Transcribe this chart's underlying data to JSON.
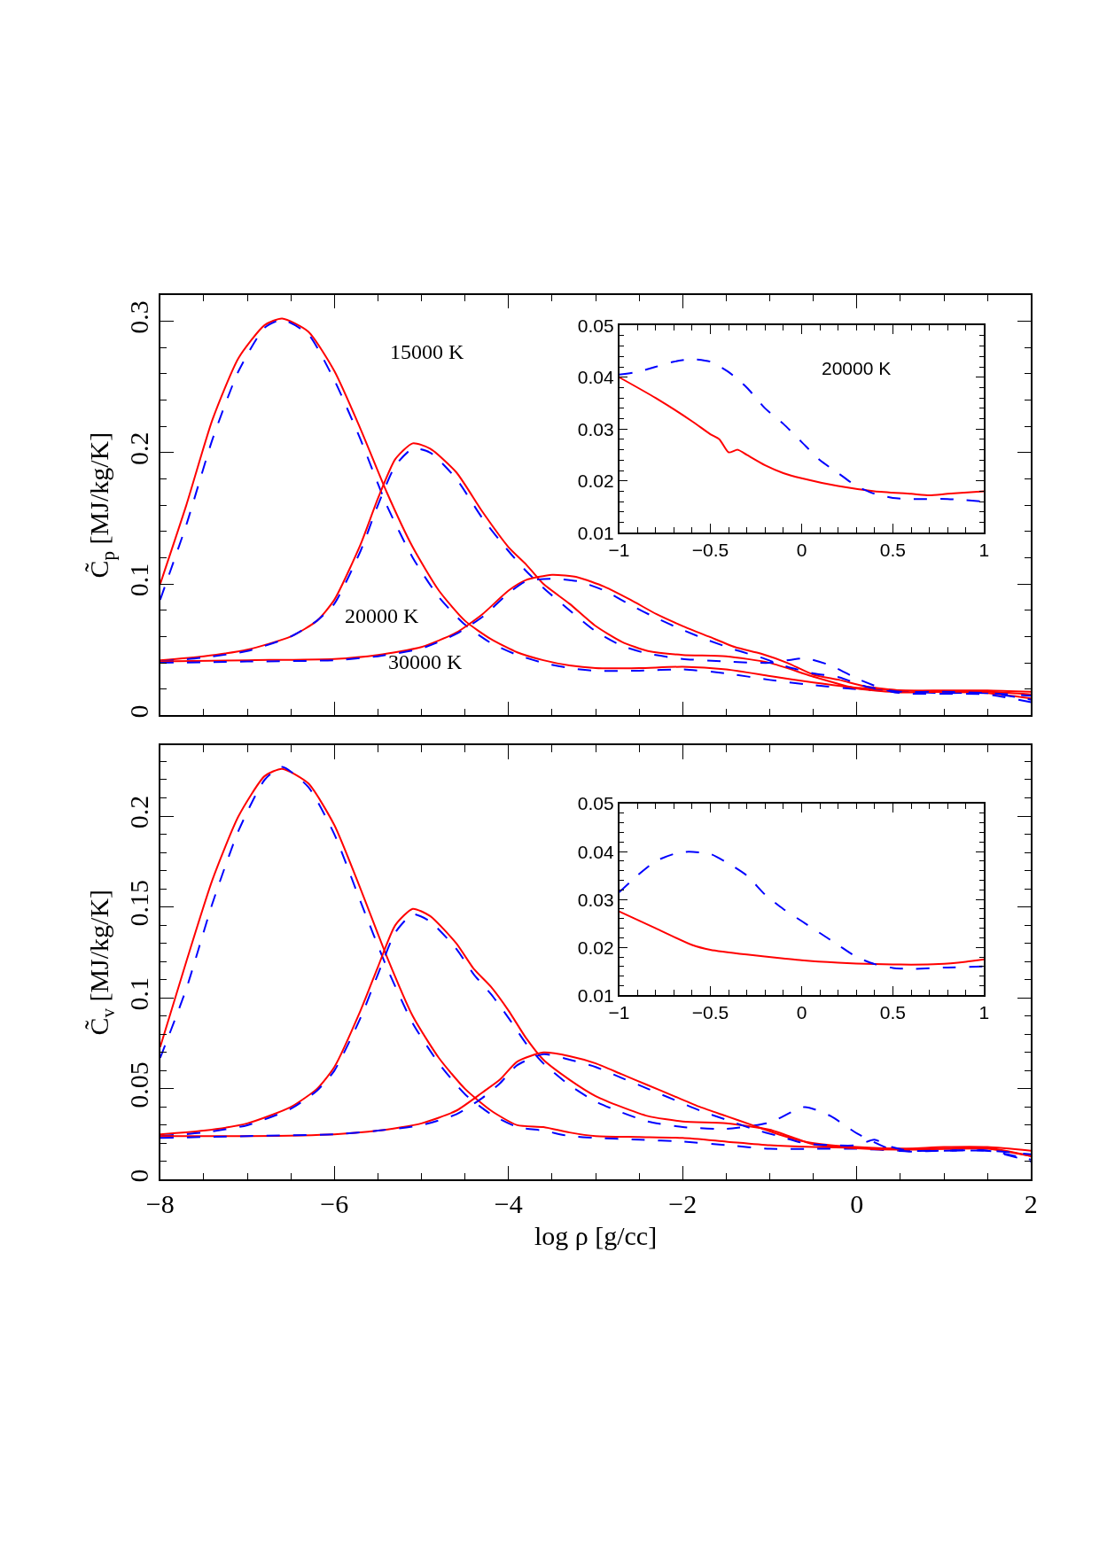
{
  "chart_data": [
    {
      "type": "line",
      "ylabel": "C̃$_{p}$ [MJ/kg/K]",
      "tick_labels": "y",
      "xlim": [
        -8,
        2
      ],
      "xticks": [
        -8,
        {
          "value": -7.5,
          "label": null
        },
        {
          "value": -7,
          "label": null
        },
        {
          "value": -6.5,
          "label": null
        },
        -6,
        {
          "value": -5.5,
          "label": null
        },
        {
          "value": -5,
          "label": null
        },
        {
          "value": -4.5,
          "label": null
        },
        -4,
        {
          "value": -3.5,
          "label": null
        },
        {
          "value": -3,
          "label": null
        },
        {
          "value": -2.5,
          "label": null
        },
        -2,
        {
          "value": -1.5,
          "label": null
        },
        {
          "value": -1,
          "label": null
        },
        {
          "value": -0.5,
          "label": null
        },
        0,
        {
          "value": 0.5,
          "label": null
        },
        {
          "value": 1,
          "label": null
        },
        {
          "value": 1.5,
          "label": null
        },
        2
      ],
      "ylim": [
        0,
        0.32
      ],
      "yticks": [
        0,
        {
          "value": 0.02,
          "label": null
        },
        {
          "value": 0.04,
          "label": null
        },
        {
          "value": 0.06,
          "label": null
        },
        {
          "value": 0.08,
          "label": null
        },
        0.1,
        {
          "value": 0.12,
          "label": null
        },
        {
          "value": 0.14,
          "label": null
        },
        {
          "value": 0.16,
          "label": null
        },
        {
          "value": 0.18,
          "label": null
        },
        0.2,
        {
          "value": 0.22,
          "label": null
        },
        {
          "value": 0.24,
          "label": null
        },
        {
          "value": 0.26,
          "label": null
        },
        {
          "value": 0.28,
          "label": null
        },
        0.3
      ],
      "annotations": [
        "15000 K",
        "20000 K",
        "30000 K"
      ],
      "series": [
        {
          "color": "#ff0000",
          "line_style": "solid",
          "x": [
            -8,
            -7.7,
            -7.4,
            -7.1,
            -6.8,
            -6.6,
            -6.3,
            -6.0,
            -5.7,
            -5.4,
            -5.1,
            -4.8,
            -4.5,
            -4.2,
            -3.9,
            -3.6,
            -3.3,
            -3.0,
            -2.5,
            -2.0,
            -1.5,
            -1.0,
            -0.5,
            0,
            0.5,
            1.0,
            1.5,
            2.0
          ],
          "values": [
            0.1,
            0.16,
            0.225,
            0.272,
            0.297,
            0.302,
            0.292,
            0.262,
            0.218,
            0.17,
            0.128,
            0.095,
            0.072,
            0.058,
            0.048,
            0.042,
            0.038,
            0.036,
            0.036,
            0.037,
            0.035,
            0.03,
            0.025,
            0.021,
            0.019,
            0.018,
            0.017,
            0.013
          ]
        },
        {
          "color": "#0000ff",
          "line_style": "dashed",
          "x": [
            -8,
            -7.7,
            -7.4,
            -7.1,
            -6.8,
            -6.6,
            -6.3,
            -6.0,
            -5.7,
            -5.4,
            -5.1,
            -4.8,
            -4.5,
            -4.2,
            -3.9,
            -3.6,
            -3.3,
            -3.0,
            -2.5,
            -2.0,
            -1.5,
            -1.0,
            -0.5,
            0,
            0.5,
            1.0,
            1.5,
            2.0
          ],
          "values": [
            0.088,
            0.145,
            0.21,
            0.262,
            0.295,
            0.301,
            0.29,
            0.255,
            0.21,
            0.16,
            0.12,
            0.09,
            0.069,
            0.055,
            0.046,
            0.04,
            0.036,
            0.034,
            0.034,
            0.035,
            0.032,
            0.027,
            0.023,
            0.02,
            0.018,
            0.017,
            0.017,
            0.012
          ]
        },
        {
          "color": "#ff0000",
          "line_style": "solid",
          "x": [
            -8,
            -7.5,
            -7,
            -6.5,
            -6.2,
            -6,
            -5.7,
            -5.5,
            -5.3,
            -5.1,
            -4.9,
            -4.6,
            -4.3,
            -4.0,
            -3.8,
            -3.6,
            -3.3,
            -3.0,
            -2.7,
            -2.4,
            -2.0,
            -1.5,
            -1.0,
            -0.5,
            0,
            0.5,
            1,
            1.5,
            2
          ],
          "values": [
            0.042,
            0.045,
            0.05,
            0.06,
            0.072,
            0.088,
            0.13,
            0.165,
            0.195,
            0.207,
            0.203,
            0.185,
            0.155,
            0.128,
            0.115,
            0.1,
            0.085,
            0.068,
            0.056,
            0.049,
            0.046,
            0.045,
            0.04,
            0.0295,
            0.0205,
            0.0175,
            0.018,
            0.018,
            0.016
          ]
        },
        {
          "color": "#0000ff",
          "line_style": "dashed",
          "x": [
            -8,
            -7.5,
            -7,
            -6.5,
            -6.2,
            -6,
            -5.7,
            -5.5,
            -5.3,
            -5.1,
            -4.9,
            -4.6,
            -4.3,
            -4.0,
            -3.8,
            -3.6,
            -3.3,
            -3.0,
            -2.7,
            -2.4,
            -2.0,
            -1.5,
            -1.0,
            -0.6,
            -0.3,
            0,
            0.4,
            0.6,
            1,
            1.5,
            2
          ],
          "values": [
            0.041,
            0.044,
            0.049,
            0.06,
            0.072,
            0.085,
            0.125,
            0.16,
            0.19,
            0.203,
            0.2,
            0.18,
            0.15,
            0.125,
            0.11,
            0.097,
            0.08,
            0.064,
            0.053,
            0.047,
            0.043,
            0.041,
            0.04,
            0.0435,
            0.038,
            0.028,
            0.018,
            0.0165,
            0.0165,
            0.016,
            0.01
          ]
        },
        {
          "color": "#ff0000",
          "line_style": "solid",
          "x": [
            -8,
            -7,
            -6,
            -5.5,
            -5,
            -4.6,
            -4.3,
            -4.0,
            -3.8,
            -3.5,
            -3.2,
            -2.9,
            -2.6,
            -2.3,
            -2.0,
            -1.7,
            -1.4,
            -1.1,
            -0.8,
            -0.5,
            -0.2,
            0.1,
            0.5,
            1,
            1.5,
            2
          ],
          "values": [
            0.041,
            0.042,
            0.043,
            0.046,
            0.052,
            0.063,
            0.077,
            0.095,
            0.103,
            0.107,
            0.105,
            0.098,
            0.088,
            0.077,
            0.068,
            0.06,
            0.052,
            0.047,
            0.04,
            0.031,
            0.027,
            0.022,
            0.019,
            0.019,
            0.019,
            0.018
          ]
        },
        {
          "color": "#0000ff",
          "line_style": "dashed",
          "x": [
            -8,
            -7,
            -6,
            -5.5,
            -5,
            -4.6,
            -4.3,
            -4.0,
            -3.8,
            -3.5,
            -3.2,
            -2.9,
            -2.6,
            -2.3,
            -2.0,
            -1.7,
            -1.4,
            -1.1,
            -0.8,
            -0.5,
            -0.2,
            0.1,
            0.5,
            1,
            1.5,
            2
          ],
          "values": [
            0.04,
            0.041,
            0.042,
            0.045,
            0.051,
            0.062,
            0.075,
            0.093,
            0.102,
            0.104,
            0.102,
            0.095,
            0.084,
            0.074,
            0.065,
            0.057,
            0.05,
            0.044,
            0.037,
            0.032,
            0.029,
            0.022,
            0.018,
            0.018,
            0.017,
            0.015
          ]
        }
      ]
    },
    {
      "type": "line",
      "xlim": [
        -1,
        1
      ],
      "xticks": [
        -1,
        {
          "value": -0.9,
          "label": null
        },
        {
          "value": -0.8,
          "label": null
        },
        {
          "value": -0.7,
          "label": null
        },
        {
          "value": -0.6,
          "label": null
        },
        -0.5,
        {
          "value": -0.4,
          "label": null
        },
        {
          "value": -0.3,
          "label": null
        },
        {
          "value": -0.2,
          "label": null
        },
        {
          "value": -0.1,
          "label": null
        },
        0,
        {
          "value": 0.1,
          "label": null
        },
        {
          "value": 0.2,
          "label": null
        },
        {
          "value": 0.3,
          "label": null
        },
        {
          "value": 0.4,
          "label": null
        },
        0.5,
        {
          "value": 0.6,
          "label": null
        },
        {
          "value": 0.7,
          "label": null
        },
        {
          "value": 0.8,
          "label": null
        },
        {
          "value": 0.9,
          "label": null
        },
        1
      ],
      "ylim": [
        0.01,
        0.05
      ],
      "yticks": [
        0.01,
        {
          "value": 0.012,
          "label": null
        },
        {
          "value": 0.014,
          "label": null
        },
        {
          "value": 0.016,
          "label": null
        },
        {
          "value": 0.018,
          "label": null
        },
        0.02,
        {
          "value": 0.022,
          "label": null
        },
        {
          "value": 0.024,
          "label": null
        },
        {
          "value": 0.026,
          "label": null
        },
        {
          "value": 0.028,
          "label": null
        },
        0.03,
        {
          "value": 0.032,
          "label": null
        },
        {
          "value": 0.034,
          "label": null
        },
        {
          "value": 0.036,
          "label": null
        },
        {
          "value": 0.038,
          "label": null
        },
        0.04,
        {
          "value": 0.042,
          "label": null
        },
        {
          "value": 0.044,
          "label": null
        },
        {
          "value": 0.046,
          "label": null
        },
        {
          "value": 0.048,
          "label": null
        },
        0.05
      ],
      "annotations": [
        "20000 K"
      ],
      "series": [
        {
          "color": "#ff0000",
          "line_style": "solid",
          "x": [
            -1,
            -0.8,
            -0.6,
            -0.5,
            -0.45,
            -0.4,
            -0.35,
            -0.3,
            -0.2,
            -0.1,
            0,
            0.2,
            0.4,
            0.6,
            0.7,
            0.8,
            1
          ],
          "values": [
            0.04,
            0.036,
            0.0315,
            0.029,
            0.028,
            0.0255,
            0.026,
            0.025,
            0.023,
            0.0215,
            0.0205,
            0.019,
            0.018,
            0.0175,
            0.0172,
            0.0175,
            0.018
          ]
        },
        {
          "color": "#0000ff",
          "line_style": "dashed",
          "x": [
            -1,
            -0.9,
            -0.8,
            -0.7,
            -0.6,
            -0.5,
            -0.4,
            -0.3,
            -0.2,
            -0.1,
            0,
            0.1,
            0.2,
            0.3,
            0.4,
            0.5,
            0.6,
            0.8,
            1
          ],
          "values": [
            0.0405,
            0.041,
            0.042,
            0.043,
            0.0435,
            0.043,
            0.041,
            0.038,
            0.034,
            0.031,
            0.0275,
            0.024,
            0.0215,
            0.019,
            0.0175,
            0.0167,
            0.0165,
            0.0165,
            0.016
          ]
        }
      ]
    },
    {
      "type": "line",
      "ylabel": "C̃$_{v}$ [MJ/kg/K]",
      "xlabel": "log ρ [g/cc]",
      "xlim": [
        -8,
        2
      ],
      "xticks": [
        -8,
        {
          "value": -7.5,
          "label": null
        },
        {
          "value": -7,
          "label": null
        },
        {
          "value": -6.5,
          "label": null
        },
        -6,
        {
          "value": -5.5,
          "label": null
        },
        {
          "value": -5,
          "label": null
        },
        {
          "value": -4.5,
          "label": null
        },
        -4,
        {
          "value": -3.5,
          "label": null
        },
        {
          "value": -3,
          "label": null
        },
        {
          "value": -2.5,
          "label": null
        },
        -2,
        {
          "value": -1.5,
          "label": null
        },
        {
          "value": -1,
          "label": null
        },
        {
          "value": -0.5,
          "label": null
        },
        0,
        {
          "value": 0.5,
          "label": null
        },
        {
          "value": 1,
          "label": null
        },
        {
          "value": 1.5,
          "label": null
        },
        2
      ],
      "ylim": [
        0,
        0.239
      ],
      "yticks": [
        0,
        {
          "value": 0.01,
          "label": null
        },
        {
          "value": 0.02,
          "label": null
        },
        {
          "value": 0.03,
          "label": null
        },
        {
          "value": 0.04,
          "label": null
        },
        0.05,
        {
          "value": 0.06,
          "label": null
        },
        {
          "value": 0.07,
          "label": null
        },
        {
          "value": 0.08,
          "label": null
        },
        {
          "value": 0.09,
          "label": null
        },
        0.1,
        {
          "value": 0.11,
          "label": null
        },
        {
          "value": 0.12,
          "label": null
        },
        {
          "value": 0.13,
          "label": null
        },
        {
          "value": 0.14,
          "label": null
        },
        0.15,
        {
          "value": 0.16,
          "label": null
        },
        {
          "value": 0.17,
          "label": null
        },
        {
          "value": 0.18,
          "label": null
        },
        {
          "value": 0.19,
          "label": null
        },
        0.2,
        {
          "value": 0.21,
          "label": null
        },
        {
          "value": 0.22,
          "label": null
        },
        {
          "value": 0.23,
          "label": null
        }
      ],
      "series": [
        {
          "color": "#ff0000",
          "line_style": "solid",
          "x": [
            -8,
            -7.7,
            -7.4,
            -7.1,
            -6.8,
            -6.6,
            -6.3,
            -6.0,
            -5.7,
            -5.4,
            -5.1,
            -4.8,
            -4.5,
            -4.2,
            -3.9,
            -3.6,
            -3.3,
            -3.0,
            -2.5,
            -2.0,
            -1.5,
            -1.0,
            -0.5,
            0,
            0.5,
            1,
            1.5,
            2
          ],
          "values": [
            0.073,
            0.12,
            0.165,
            0.2,
            0.222,
            0.226,
            0.218,
            0.195,
            0.16,
            0.123,
            0.09,
            0.067,
            0.05,
            0.038,
            0.03,
            0.029,
            0.026,
            0.024,
            0.0235,
            0.023,
            0.021,
            0.019,
            0.018,
            0.0175,
            0.017,
            0.017,
            0.017,
            0.013
          ]
        },
        {
          "color": "#0000ff",
          "line_style": "dashed",
          "x": [
            -8,
            -7.7,
            -7.4,
            -7.1,
            -6.8,
            -6.6,
            -6.3,
            -6.0,
            -5.7,
            -5.4,
            -5.1,
            -4.8,
            -4.5,
            -4.2,
            -3.9,
            -3.6,
            -3.3,
            -3.0,
            -2.5,
            -2.0,
            -1.5,
            -1.0,
            -0.5,
            0,
            0.5,
            1,
            1.5,
            2
          ],
          "values": [
            0.067,
            0.105,
            0.152,
            0.192,
            0.22,
            0.227,
            0.216,
            0.19,
            0.153,
            0.117,
            0.086,
            0.064,
            0.047,
            0.036,
            0.029,
            0.027,
            0.024,
            0.023,
            0.022,
            0.021,
            0.019,
            0.017,
            0.017,
            0.017,
            0.016,
            0.016,
            0.016,
            0.011
          ]
        },
        {
          "color": "#ff0000",
          "line_style": "solid",
          "x": [
            -8,
            -7.5,
            -7,
            -6.5,
            -6.2,
            -6,
            -5.7,
            -5.5,
            -5.3,
            -5.1,
            -4.9,
            -4.6,
            -4.4,
            -4.2,
            -4.0,
            -3.8,
            -3.6,
            -3.3,
            -3.0,
            -2.7,
            -2.4,
            -2.0,
            -1.5,
            -1.0,
            -0.5,
            0,
            0.5,
            1,
            1.5,
            2
          ],
          "values": [
            0.025,
            0.027,
            0.031,
            0.04,
            0.05,
            0.062,
            0.093,
            0.117,
            0.14,
            0.149,
            0.145,
            0.13,
            0.116,
            0.106,
            0.093,
            0.078,
            0.066,
            0.055,
            0.046,
            0.04,
            0.035,
            0.032,
            0.031,
            0.0275,
            0.0195,
            0.0173,
            0.0165,
            0.017,
            0.0175,
            0.013
          ]
        },
        {
          "color": "#0000ff",
          "line_style": "dashed",
          "x": [
            -8,
            -7.5,
            -7,
            -6.5,
            -6.2,
            -6,
            -5.7,
            -5.5,
            -5.3,
            -5.1,
            -4.9,
            -4.6,
            -4.4,
            -4.2,
            -4.0,
            -3.8,
            -3.6,
            -3.3,
            -3.0,
            -2.7,
            -2.4,
            -2.0,
            -1.5,
            -1.0,
            -0.6,
            -0.3,
            0,
            0.4,
            0.6,
            1,
            1.5,
            2
          ],
          "values": [
            0.024,
            0.026,
            0.03,
            0.039,
            0.049,
            0.06,
            0.089,
            0.113,
            0.136,
            0.146,
            0.142,
            0.127,
            0.113,
            0.102,
            0.089,
            0.075,
            0.064,
            0.052,
            0.043,
            0.037,
            0.032,
            0.029,
            0.028,
            0.0315,
            0.04,
            0.035,
            0.0255,
            0.0165,
            0.0155,
            0.016,
            0.016,
            0.01
          ]
        },
        {
          "color": "#ff0000",
          "line_style": "solid",
          "x": [
            -8,
            -7,
            -6,
            -5.5,
            -5,
            -4.6,
            -4.3,
            -4.1,
            -3.9,
            -3.6,
            -3.3,
            -3.0,
            -2.7,
            -2.4,
            -2.1,
            -1.8,
            -1.5,
            -1.2,
            -0.9,
            -0.6,
            -0.3,
            0,
            0.5,
            1,
            1.5,
            2
          ],
          "values": [
            0.024,
            0.024,
            0.025,
            0.027,
            0.031,
            0.038,
            0.048,
            0.055,
            0.065,
            0.07,
            0.068,
            0.064,
            0.058,
            0.052,
            0.046,
            0.04,
            0.035,
            0.03,
            0.025,
            0.021,
            0.019,
            0.018,
            0.017,
            0.018,
            0.018,
            0.016
          ]
        },
        {
          "color": "#0000ff",
          "line_style": "dashed",
          "x": [
            -8,
            -7,
            -6,
            -5.5,
            -5,
            -4.6,
            -4.3,
            -4.1,
            -3.9,
            -3.6,
            -3.3,
            -3.0,
            -2.7,
            -2.4,
            -2.1,
            -1.8,
            -1.5,
            -1.2,
            -0.9,
            -0.6,
            -0.3,
            0,
            0.2,
            0.4,
            0.6,
            1,
            1.5,
            2
          ],
          "values": [
            0.023,
            0.024,
            0.025,
            0.027,
            0.03,
            0.036,
            0.045,
            0.053,
            0.063,
            0.069,
            0.066,
            0.062,
            0.056,
            0.05,
            0.044,
            0.038,
            0.033,
            0.028,
            0.024,
            0.02,
            0.019,
            0.019,
            0.022,
            0.018,
            0.016,
            0.016,
            0.016,
            0.014
          ]
        }
      ]
    },
    {
      "type": "line",
      "xlim": [
        -1,
        1
      ],
      "xticks": [
        -1,
        {
          "value": -0.9,
          "label": null
        },
        {
          "value": -0.8,
          "label": null
        },
        {
          "value": -0.7,
          "label": null
        },
        {
          "value": -0.6,
          "label": null
        },
        -0.5,
        {
          "value": -0.4,
          "label": null
        },
        {
          "value": -0.3,
          "label": null
        },
        {
          "value": -0.2,
          "label": null
        },
        {
          "value": -0.1,
          "label": null
        },
        0,
        {
          "value": 0.1,
          "label": null
        },
        {
          "value": 0.2,
          "label": null
        },
        {
          "value": 0.3,
          "label": null
        },
        {
          "value": 0.4,
          "label": null
        },
        0.5,
        {
          "value": 0.6,
          "label": null
        },
        {
          "value": 0.7,
          "label": null
        },
        {
          "value": 0.8,
          "label": null
        },
        {
          "value": 0.9,
          "label": null
        },
        1
      ],
      "ylim": [
        0.01,
        0.05
      ],
      "yticks": [
        0.01,
        {
          "value": 0.012,
          "label": null
        },
        {
          "value": 0.014,
          "label": null
        },
        {
          "value": 0.016,
          "label": null
        },
        {
          "value": 0.018,
          "label": null
        },
        0.02,
        {
          "value": 0.022,
          "label": null
        },
        {
          "value": 0.024,
          "label": null
        },
        {
          "value": 0.026,
          "label": null
        },
        {
          "value": 0.028,
          "label": null
        },
        0.03,
        {
          "value": 0.032,
          "label": null
        },
        {
          "value": 0.034,
          "label": null
        },
        {
          "value": 0.036,
          "label": null
        },
        {
          "value": 0.038,
          "label": null
        },
        0.04,
        {
          "value": 0.042,
          "label": null
        },
        {
          "value": 0.044,
          "label": null
        },
        {
          "value": 0.046,
          "label": null
        },
        {
          "value": 0.048,
          "label": null
        },
        0.05
      ],
      "series": [
        {
          "color": "#ff0000",
          "line_style": "solid",
          "x": [
            -1,
            -0.8,
            -0.6,
            -0.5,
            -0.3,
            -0.1,
            0,
            0.2,
            0.4,
            0.6,
            0.75,
            0.9,
            1
          ],
          "values": [
            0.0275,
            0.024,
            0.0205,
            0.0195,
            0.0185,
            0.0177,
            0.0173,
            0.0168,
            0.0165,
            0.0164,
            0.0165,
            0.017,
            0.0175
          ]
        },
        {
          "color": "#0000ff",
          "line_style": "dashed",
          "x": [
            -1,
            -0.9,
            -0.8,
            -0.7,
            -0.62,
            -0.5,
            -0.4,
            -0.3,
            -0.2,
            -0.1,
            0,
            0.1,
            0.2,
            0.3,
            0.4,
            0.5,
            0.6,
            0.8,
            1
          ],
          "values": [
            0.0315,
            0.035,
            0.038,
            0.0395,
            0.04,
            0.0395,
            0.0375,
            0.035,
            0.031,
            0.028,
            0.0255,
            0.023,
            0.0205,
            0.018,
            0.0165,
            0.0157,
            0.0155,
            0.0158,
            0.016
          ]
        }
      ]
    }
  ]
}
